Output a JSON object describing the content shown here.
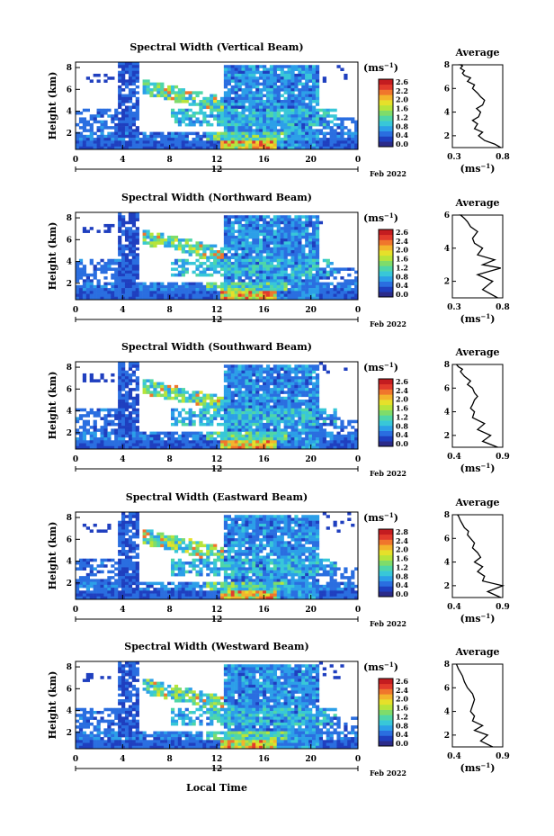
{
  "chart_data": {
    "type": "heatmap",
    "panels": [
      {
        "title": "Spectral Width (Vertical Beam)",
        "date": "Feb 2022",
        "colorbar_ticks": [
          "2.6",
          "2.2",
          "2.0",
          "1.6",
          "1.2",
          "0.8",
          "0.4",
          "0.0"
        ],
        "profile": {
          "title": "Average",
          "xlabel": "(ms",
          "xlabel_sup": "−1",
          "xlabel_close": ")",
          "xticks": [
            "0.3",
            "0.8"
          ],
          "xlim": [
            0.3,
            0.8
          ],
          "ylim": [
            1,
            8
          ],
          "x": [
            0.78,
            0.72,
            0.62,
            0.56,
            0.6,
            0.52,
            0.55,
            0.5,
            0.56,
            0.58,
            0.54,
            0.6,
            0.62,
            0.58,
            0.55,
            0.5,
            0.52,
            0.45,
            0.48,
            0.42,
            0.4,
            0.42,
            0.38,
            0.4,
            0.38,
            0.4
          ],
          "y": [
            1.0,
            1.3,
            1.6,
            2.0,
            2.3,
            2.6,
            3.0,
            3.3,
            3.6,
            4.0,
            4.3,
            4.6,
            5.0,
            5.3,
            5.6,
            6.0,
            6.3,
            6.6,
            6.9,
            7.1,
            7.3,
            7.5,
            7.7,
            7.9,
            8.0,
            8.0
          ]
        }
      },
      {
        "title": "Spectral Width (Northward Beam)",
        "date": "Feb 2022",
        "colorbar_ticks": [
          "2.6",
          "2.4",
          "2.0",
          "1.6",
          "1.2",
          "0.8",
          "0.4",
          "0.0"
        ],
        "profile": {
          "title": "Average",
          "xlabel": "(ms",
          "xlabel_sup": "−1",
          "xlabel_close": ")",
          "xticks": [
            "0.3",
            "0.8"
          ],
          "xlim": [
            0.3,
            0.8
          ],
          "ylim": [
            1,
            6
          ],
          "x": [
            0.75,
            0.6,
            0.7,
            0.55,
            0.78,
            0.6,
            0.72,
            0.55,
            0.6,
            0.52,
            0.5,
            0.55,
            0.48,
            0.45,
            0.42,
            0.4,
            0.38,
            0.4
          ],
          "y": [
            1.0,
            1.5,
            2.0,
            2.4,
            2.8,
            3.0,
            3.3,
            3.6,
            4.0,
            4.3,
            4.6,
            5.0,
            5.3,
            5.6,
            5.8,
            5.9,
            6.0,
            6.0
          ]
        }
      },
      {
        "title": "Spectral Width (Southward Beam)",
        "date": "Feb 2022",
        "colorbar_ticks": [
          "2.6",
          "2.4",
          "2.0",
          "1.6",
          "1.2",
          "0.8",
          "0.4",
          "0.0"
        ],
        "profile": {
          "title": "Average",
          "xlabel": "(ms",
          "xlabel_sup": "−1",
          "xlabel_close": ")",
          "xticks": [
            "0.4",
            "0.9"
          ],
          "xlim": [
            0.4,
            0.9
          ],
          "ylim": [
            1,
            8
          ],
          "x": [
            0.85,
            0.7,
            0.78,
            0.65,
            0.72,
            0.6,
            0.62,
            0.58,
            0.6,
            0.62,
            0.65,
            0.62,
            0.6,
            0.55,
            0.58,
            0.52,
            0.5,
            0.48,
            0.5,
            0.46,
            0.45,
            0.44
          ],
          "y": [
            1.0,
            1.5,
            2.0,
            2.5,
            3.0,
            3.5,
            4.0,
            4.3,
            4.6,
            5.0,
            5.3,
            5.6,
            6.0,
            6.3,
            6.6,
            7.0,
            7.2,
            7.4,
            7.6,
            7.8,
            7.9,
            8.0
          ]
        }
      },
      {
        "title": "Spectral Width (Eastward Beam)",
        "date": "Feb 2022",
        "colorbar_ticks": [
          "2.8",
          "2.4",
          "2.0",
          "1.6",
          "1.2",
          "0.8",
          "0.4",
          "0.0"
        ],
        "profile": {
          "title": "Average",
          "xlabel": "(ms",
          "xlabel_sup": "−1",
          "xlabel_close": ")",
          "xticks": [
            "0.4",
            "0.9"
          ],
          "xlim": [
            0.4,
            0.9
          ],
          "ylim": [
            1,
            8
          ],
          "x": [
            0.88,
            0.75,
            0.9,
            0.7,
            0.72,
            0.65,
            0.7,
            0.62,
            0.68,
            0.65,
            0.6,
            0.62,
            0.58,
            0.55,
            0.56,
            0.52,
            0.5,
            0.48,
            0.47,
            0.46,
            0.45
          ],
          "y": [
            1.0,
            1.5,
            2.0,
            2.4,
            2.8,
            3.2,
            3.6,
            4.0,
            4.4,
            4.8,
            5.2,
            5.6,
            6.0,
            6.3,
            6.6,
            6.9,
            7.2,
            7.5,
            7.7,
            7.9,
            8.0
          ]
        }
      },
      {
        "title": "Spectral Width (Westward Beam)",
        "date": "Feb 2022",
        "colorbar_ticks": [
          "2.6",
          "2.4",
          "2.0",
          "1.6",
          "1.2",
          "0.8",
          "0.4",
          "0.0"
        ],
        "profile": {
          "title": "Average",
          "xlabel": "(ms",
          "xlabel_sup": "−1",
          "xlabel_close": ")",
          "xticks": [
            "0.4",
            "0.9"
          ],
          "xlim": [
            0.4,
            0.9
          ],
          "ylim": [
            1,
            8
          ],
          "x": [
            0.8,
            0.68,
            0.75,
            0.62,
            0.7,
            0.6,
            0.62,
            0.58,
            0.6,
            0.62,
            0.6,
            0.55,
            0.52,
            0.5,
            0.48,
            0.46,
            0.45,
            0.44
          ],
          "y": [
            1.0,
            1.5,
            2.0,
            2.4,
            2.8,
            3.2,
            3.6,
            4.0,
            4.5,
            5.0,
            5.5,
            6.0,
            6.5,
            7.0,
            7.3,
            7.6,
            7.8,
            8.0
          ]
        }
      }
    ],
    "ylabel": "Height (km)",
    "yticks": [
      "2",
      "4",
      "6",
      "8"
    ],
    "ylim": [
      0.5,
      8.5
    ],
    "xticks": [
      "0",
      "4",
      "8",
      "12",
      "16",
      "20",
      "0"
    ],
    "xlim": [
      0,
      24
    ],
    "date_tick": "12",
    "xlabel": "Local Time",
    "colorbar_unit": "(ms",
    "colorbar_unit_sup": "−1",
    "colorbar_unit_close": ")",
    "colormap": [
      "#2b2b8a",
      "#1f3fbf",
      "#2a6ee0",
      "#2c9fe8",
      "#38c7d8",
      "#4fd6a8",
      "#7fdc6a",
      "#b7e43a",
      "#e6e02a",
      "#f3b42c",
      "#f0762c",
      "#e23b2c",
      "#c41c20"
    ]
  }
}
